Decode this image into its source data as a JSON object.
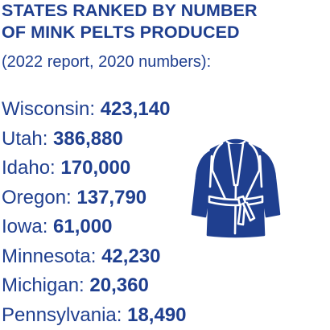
{
  "title": {
    "line1": "STATES RANKED BY NUMBER",
    "line2": "OF MINK PELTS PRODUCED"
  },
  "subtitle": "(2022 report, 2020 numbers):",
  "rankings": [
    {
      "state": "Wisconsin:",
      "count": "423,140"
    },
    {
      "state": "Utah:",
      "count": "386,880"
    },
    {
      "state": "Idaho:",
      "count": "170,000"
    },
    {
      "state": "Oregon:",
      "count": "137,790"
    },
    {
      "state": "Iowa:",
      "count": "61,000"
    },
    {
      "state": "Minnesota:",
      "count": "42,230"
    },
    {
      "state": "Michigan:",
      "count": "20,360"
    },
    {
      "state": "Pennsylvania:",
      "count": "18,490"
    }
  ],
  "icon": "fur-coat-icon",
  "colors": {
    "text": "#1f3f8f",
    "icon": "#1f3f8f",
    "background": "#ffffff"
  }
}
